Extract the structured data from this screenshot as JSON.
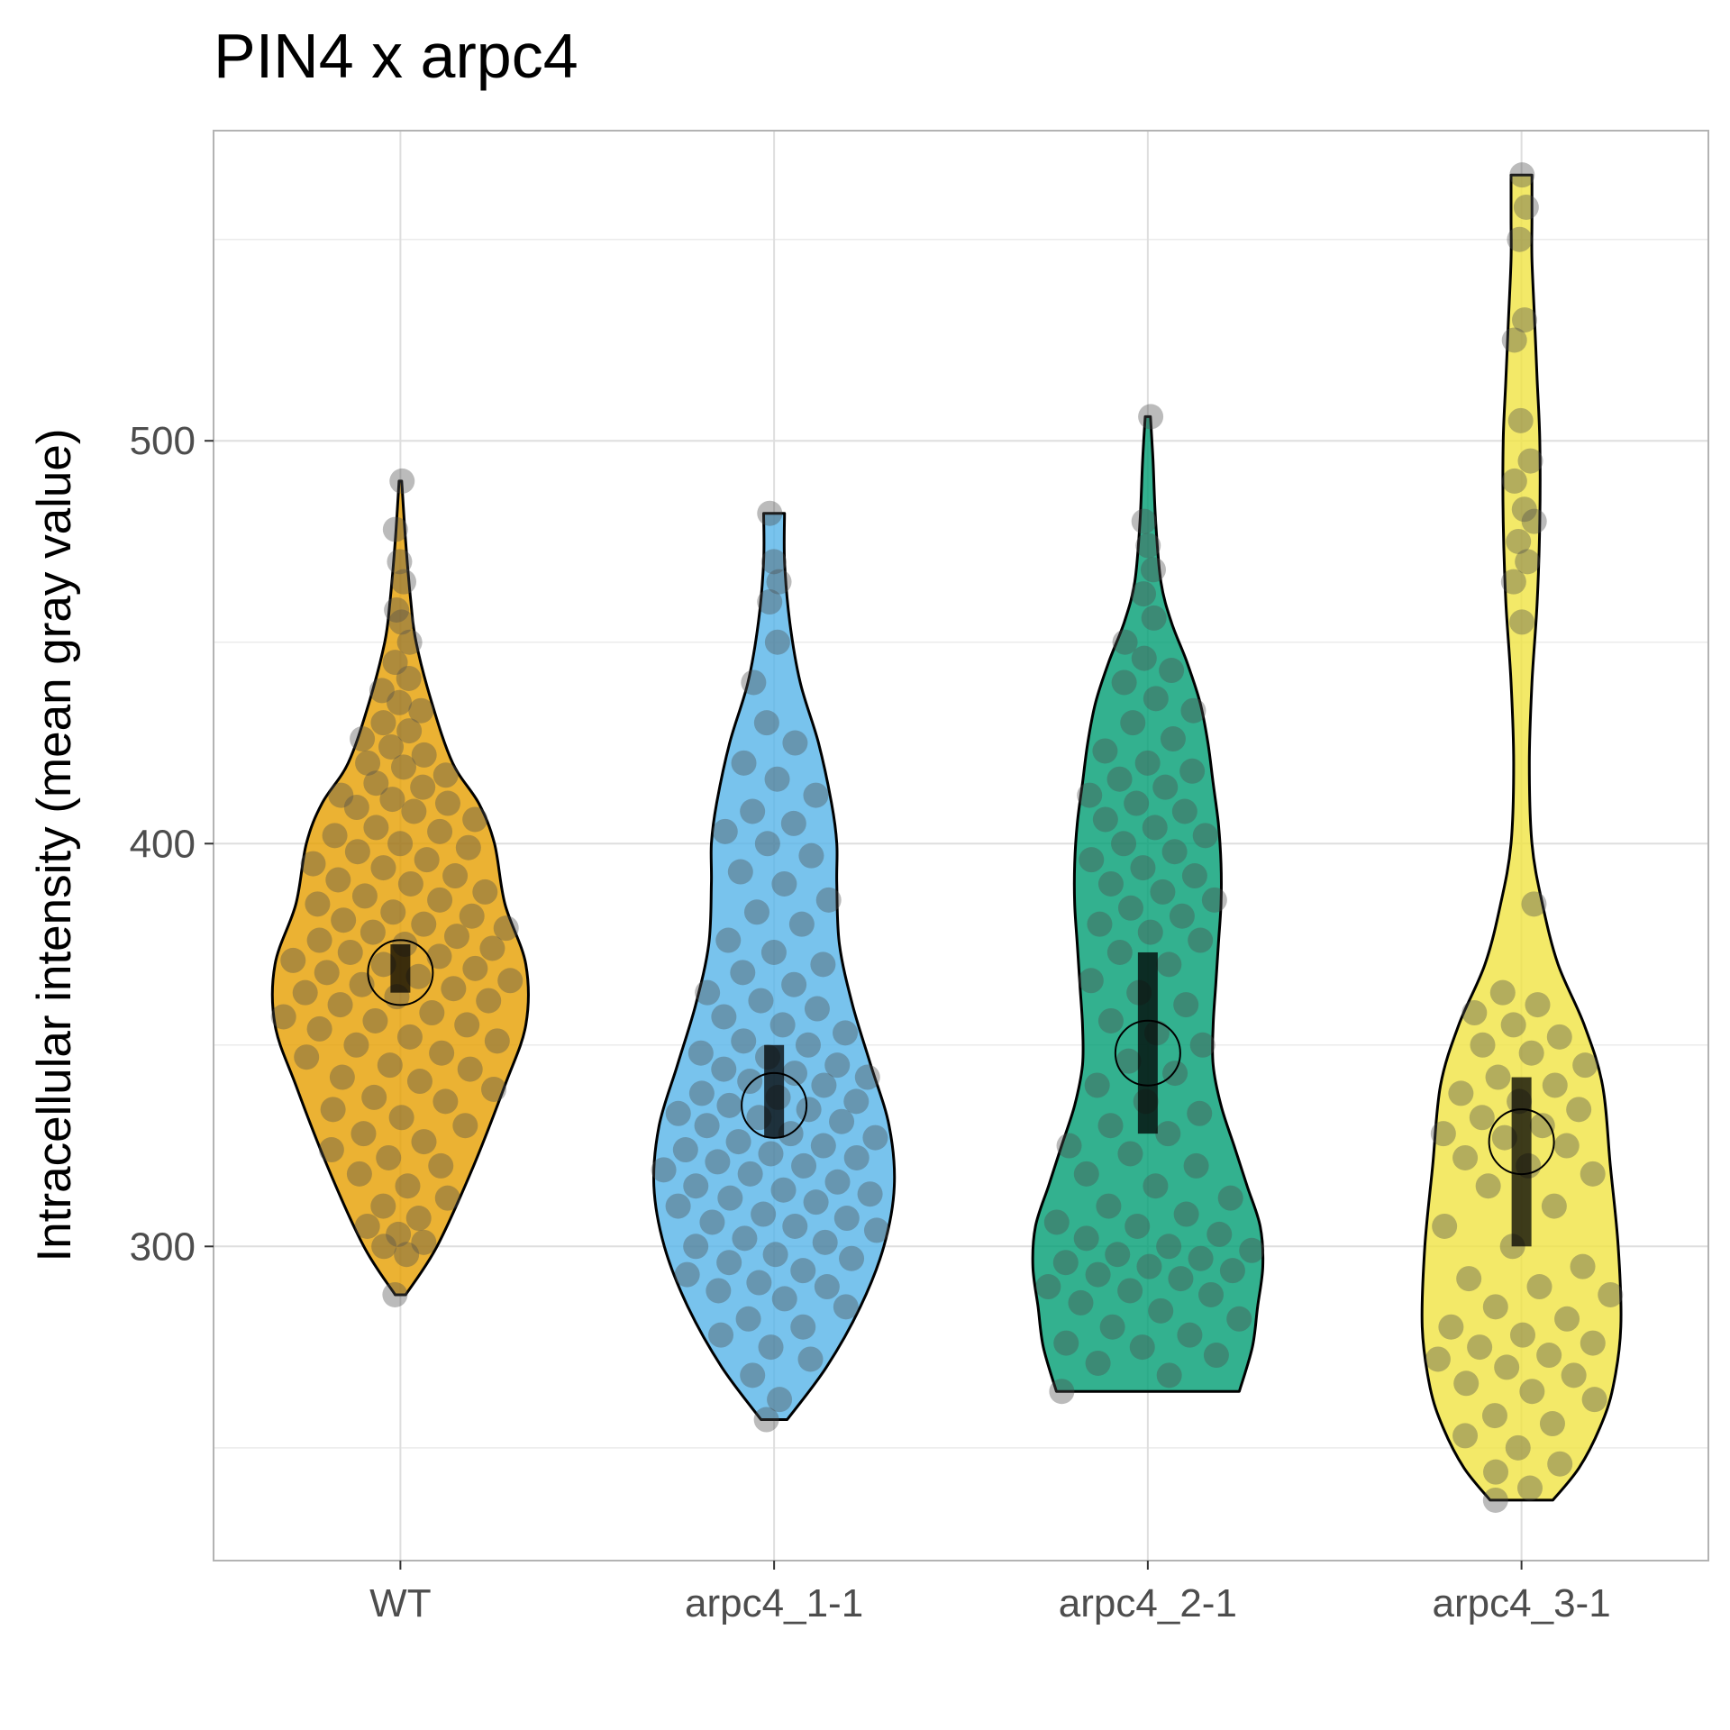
{
  "chart_data": {
    "type": "violin",
    "title": "PIN4 x arpc4",
    "xlabel": "",
    "ylabel": "Intracellular intensity (mean gray value)",
    "ylim": [
      222,
      577
    ],
    "yticks": [
      300,
      400,
      500
    ],
    "yminor": [
      250,
      350,
      450,
      550
    ],
    "grid": true,
    "legend": "none",
    "categories": [
      "WT",
      "arpc4_1-1",
      "arpc4_2-1",
      "arpc4_3-1"
    ],
    "colors": [
      "#E69F00",
      "#56B4E9",
      "#009E73",
      "#F0E442"
    ],
    "groups": [
      {
        "name": "WT",
        "range": [
          288,
          490
        ],
        "mean": 368,
        "ci": [
          363,
          375
        ],
        "density": [
          [
            288,
            0.02
          ],
          [
            300,
            0.14
          ],
          [
            320,
            0.28
          ],
          [
            340,
            0.4
          ],
          [
            355,
            0.48
          ],
          [
            370,
            0.48
          ],
          [
            385,
            0.4
          ],
          [
            400,
            0.36
          ],
          [
            410,
            0.3
          ],
          [
            420,
            0.2
          ],
          [
            435,
            0.12
          ],
          [
            450,
            0.06
          ],
          [
            460,
            0.04
          ],
          [
            475,
            0.02
          ],
          [
            490,
            0.005
          ]
        ],
        "points": [
          288,
          298,
          300,
          301,
          303,
          305,
          307,
          310,
          312,
          315,
          318,
          320,
          322,
          324,
          326,
          328,
          330,
          332,
          334,
          336,
          337,
          339,
          341,
          342,
          344,
          345,
          347,
          348,
          350,
          351,
          352,
          354,
          355,
          356,
          357,
          358,
          360,
          361,
          362,
          363,
          364,
          365,
          366,
          367,
          368,
          369,
          370,
          371,
          372,
          373,
          374,
          375,
          376,
          377,
          378,
          379,
          380,
          381,
          382,
          383,
          385,
          386,
          387,
          388,
          390,
          391,
          392,
          394,
          395,
          396,
          398,
          399,
          400,
          402,
          403,
          404,
          406,
          408,
          409,
          410,
          411,
          412,
          414,
          415,
          417,
          419,
          420,
          422,
          424,
          426,
          428,
          430,
          433,
          435,
          438,
          441,
          445,
          450,
          455,
          458,
          465,
          470,
          478,
          490
        ]
      },
      {
        "name": "arpc4_1-1",
        "range": [
          257,
          482
        ],
        "mean": 335,
        "ci": [
          327,
          350
        ],
        "density": [
          [
            257,
            0.05
          ],
          [
            270,
            0.2
          ],
          [
            285,
            0.33
          ],
          [
            300,
            0.42
          ],
          [
            315,
            0.46
          ],
          [
            330,
            0.44
          ],
          [
            345,
            0.37
          ],
          [
            360,
            0.3
          ],
          [
            375,
            0.25
          ],
          [
            390,
            0.24
          ],
          [
            400,
            0.24
          ],
          [
            410,
            0.22
          ],
          [
            425,
            0.17
          ],
          [
            440,
            0.1
          ],
          [
            455,
            0.06
          ],
          [
            470,
            0.04
          ],
          [
            482,
            0.04
          ]
        ],
        "points": [
          257,
          262,
          268,
          272,
          275,
          278,
          280,
          282,
          285,
          287,
          289,
          290,
          291,
          293,
          294,
          296,
          297,
          298,
          300,
          301,
          302,
          304,
          305,
          306,
          307,
          308,
          310,
          311,
          312,
          313,
          314,
          315,
          316,
          318,
          319,
          320,
          321,
          322,
          323,
          324,
          325,
          326,
          327,
          328,
          330,
          331,
          332,
          333,
          334,
          335,
          336,
          337,
          338,
          340,
          341,
          342,
          343,
          344,
          345,
          347,
          348,
          350,
          351,
          353,
          355,
          357,
          359,
          361,
          363,
          365,
          368,
          370,
          373,
          376,
          380,
          383,
          386,
          390,
          393,
          397,
          400,
          403,
          405,
          408,
          412,
          416,
          420,
          425,
          430,
          440,
          450,
          460,
          465,
          470,
          482
        ]
      },
      {
        "name": "arpc4_2-1",
        "range": [
          264,
          506
        ],
        "mean": 348,
        "ci": [
          328,
          373
        ],
        "density": [
          [
            264,
            0.35
          ],
          [
            275,
            0.4
          ],
          [
            285,
            0.42
          ],
          [
            295,
            0.44
          ],
          [
            305,
            0.43
          ],
          [
            315,
            0.38
          ],
          [
            325,
            0.33
          ],
          [
            335,
            0.28
          ],
          [
            345,
            0.25
          ],
          [
            355,
            0.25
          ],
          [
            365,
            0.26
          ],
          [
            375,
            0.27
          ],
          [
            385,
            0.28
          ],
          [
            395,
            0.28
          ],
          [
            405,
            0.27
          ],
          [
            415,
            0.25
          ],
          [
            425,
            0.23
          ],
          [
            435,
            0.2
          ],
          [
            445,
            0.15
          ],
          [
            455,
            0.09
          ],
          [
            465,
            0.05
          ],
          [
            480,
            0.03
          ],
          [
            495,
            0.02
          ],
          [
            506,
            0.01
          ]
        ],
        "points": [
          264,
          268,
          271,
          273,
          275,
          276,
          278,
          280,
          282,
          284,
          286,
          288,
          289,
          290,
          292,
          293,
          294,
          295,
          296,
          297,
          298,
          299,
          300,
          302,
          303,
          305,
          306,
          308,
          310,
          312,
          315,
          318,
          320,
          323,
          325,
          328,
          330,
          333,
          336,
          340,
          343,
          346,
          350,
          353,
          356,
          360,
          363,
          366,
          370,
          373,
          376,
          378,
          380,
          382,
          384,
          386,
          388,
          390,
          392,
          394,
          396,
          398,
          400,
          402,
          404,
          406,
          408,
          410,
          412,
          414,
          416,
          418,
          420,
          423,
          426,
          430,
          433,
          436,
          440,
          443,
          446,
          450,
          456,
          462,
          468,
          474,
          480,
          506
        ]
      },
      {
        "name": "arpc4_3-1",
        "range": [
          237,
          566
        ],
        "mean": 326,
        "ci": [
          300,
          342
        ],
        "density": [
          [
            237,
            0.12
          ],
          [
            245,
            0.22
          ],
          [
            255,
            0.3
          ],
          [
            265,
            0.35
          ],
          [
            280,
            0.38
          ],
          [
            300,
            0.37
          ],
          [
            320,
            0.34
          ],
          [
            340,
            0.31
          ],
          [
            355,
            0.24
          ],
          [
            370,
            0.14
          ],
          [
            385,
            0.08
          ],
          [
            400,
            0.04
          ],
          [
            420,
            0.03
          ],
          [
            440,
            0.04
          ],
          [
            460,
            0.06
          ],
          [
            480,
            0.07
          ],
          [
            500,
            0.07
          ],
          [
            515,
            0.06
          ],
          [
            530,
            0.05
          ],
          [
            545,
            0.04
          ],
          [
            555,
            0.04
          ],
          [
            566,
            0.04
          ]
        ],
        "points": [
          237,
          240,
          244,
          246,
          250,
          253,
          256,
          258,
          262,
          264,
          266,
          268,
          270,
          272,
          273,
          275,
          276,
          278,
          280,
          282,
          285,
          288,
          290,
          292,
          295,
          300,
          305,
          310,
          315,
          318,
          320,
          322,
          325,
          327,
          328,
          330,
          332,
          334,
          336,
          338,
          340,
          342,
          345,
          348,
          350,
          352,
          355,
          358,
          360,
          363,
          385,
          455,
          465,
          470,
          475,
          480,
          483,
          490,
          495,
          505,
          525,
          530,
          550,
          558,
          566
        ]
      }
    ]
  }
}
